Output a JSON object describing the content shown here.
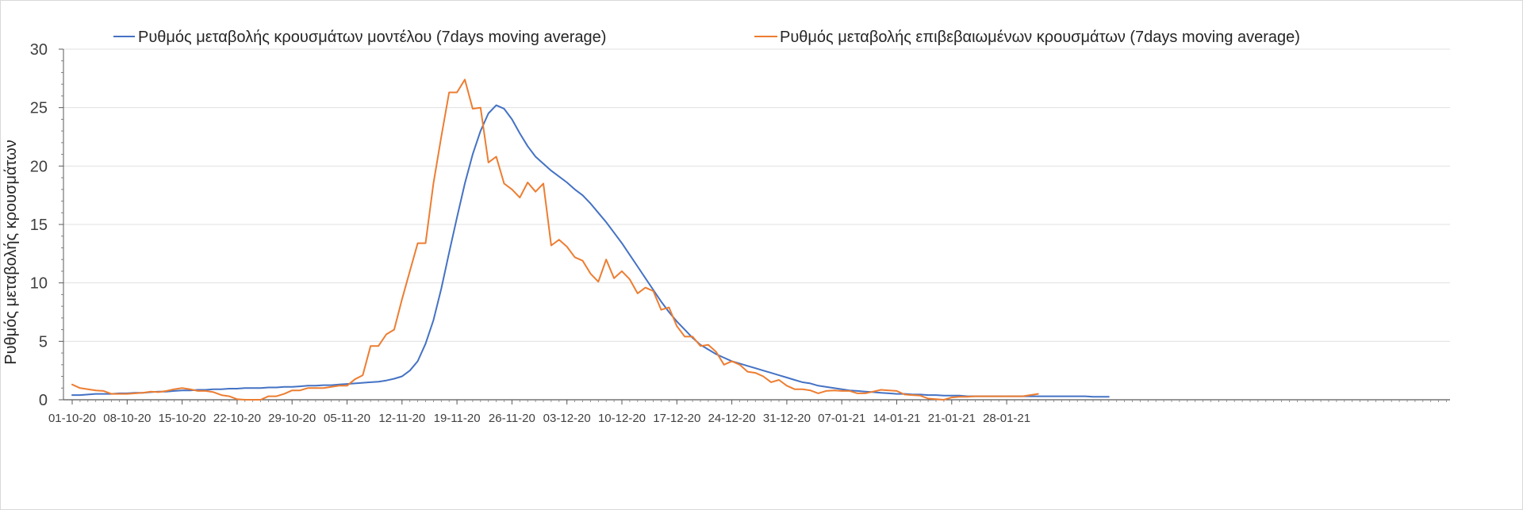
{
  "chart_data": {
    "type": "line",
    "title": "",
    "xlabel": "",
    "ylabel": "Ρυθμός μεταβολής κρουσμάτων",
    "ylim": [
      0,
      30
    ],
    "yticks": [
      0,
      5,
      10,
      15,
      20,
      25,
      30
    ],
    "grid": "horizontal",
    "legend_position": "top",
    "x_start": "01-10-20",
    "x_tick_labels": [
      "01-10-20",
      "08-10-20",
      "15-10-20",
      "22-10-20",
      "29-10-20",
      "05-11-20",
      "12-11-20",
      "19-11-20",
      "26-11-20",
      "03-12-20",
      "10-12-20",
      "17-12-20",
      "24-12-20",
      "31-12-20",
      "07-01-21",
      "14-01-21",
      "21-01-21",
      "28-01-21"
    ],
    "series": [
      {
        "name": "Ρυθμός μεταβολής κρουσμάτων μοντέλου (7days moving average)",
        "color": "#4472C4",
        "values": [
          0.4,
          0.4,
          0.45,
          0.5,
          0.5,
          0.5,
          0.55,
          0.55,
          0.6,
          0.6,
          0.65,
          0.7,
          0.7,
          0.75,
          0.8,
          0.8,
          0.85,
          0.85,
          0.9,
          0.9,
          0.95,
          0.95,
          1.0,
          1.0,
          1.0,
          1.05,
          1.05,
          1.1,
          1.1,
          1.15,
          1.2,
          1.2,
          1.25,
          1.25,
          1.3,
          1.35,
          1.4,
          1.45,
          1.5,
          1.55,
          1.65,
          1.8,
          2.0,
          2.5,
          3.3,
          4.8,
          6.8,
          9.5,
          12.6,
          15.6,
          18.5,
          21.0,
          23.0,
          24.5,
          25.2,
          24.9,
          24.0,
          22.8,
          21.7,
          20.8,
          20.2,
          19.6,
          19.1,
          18.6,
          18.0,
          17.5,
          16.8,
          16.0,
          15.2,
          14.3,
          13.4,
          12.4,
          11.4,
          10.4,
          9.4,
          8.4,
          7.5,
          6.7,
          6.0,
          5.3,
          4.7,
          4.3,
          3.9,
          3.6,
          3.3,
          3.1,
          2.9,
          2.7,
          2.5,
          2.3,
          2.1,
          1.9,
          1.7,
          1.5,
          1.4,
          1.2,
          1.1,
          1.0,
          0.9,
          0.8,
          0.75,
          0.7,
          0.65,
          0.6,
          0.55,
          0.5,
          0.5,
          0.45,
          0.45,
          0.4,
          0.4,
          0.35,
          0.35,
          0.35,
          0.3,
          0.3,
          0.3,
          0.3,
          0.3,
          0.3,
          0.3,
          0.3,
          0.3,
          0.3,
          0.3,
          0.3,
          0.3,
          0.3,
          0.3,
          0.3,
          0.25,
          0.25,
          0.25
        ]
      },
      {
        "name": "Ρυθμός μεταβολής επιβεβαιωμένων κρουσμάτων (7days moving average)",
        "color": "#ED7D31",
        "values": [
          1.3,
          1.0,
          0.9,
          0.8,
          0.75,
          0.5,
          0.5,
          0.5,
          0.55,
          0.6,
          0.7,
          0.65,
          0.75,
          0.9,
          1.0,
          0.9,
          0.75,
          0.75,
          0.65,
          0.4,
          0.3,
          0.05,
          0.0,
          0.0,
          0.0,
          0.3,
          0.3,
          0.5,
          0.8,
          0.8,
          1.0,
          1.0,
          1.0,
          1.1,
          1.2,
          1.2,
          1.75,
          2.1,
          4.6,
          4.6,
          5.6,
          6.0,
          8.6,
          11.0,
          13.4,
          13.4,
          18.5,
          22.5,
          26.3,
          26.3,
          27.4,
          24.9,
          25.0,
          20.3,
          20.8,
          18.5,
          18.0,
          17.3,
          18.6,
          17.8,
          18.5,
          13.2,
          13.7,
          13.1,
          12.2,
          11.9,
          10.8,
          10.1,
          12.0,
          10.4,
          11.0,
          10.3,
          9.1,
          9.6,
          9.3,
          7.7,
          7.9,
          6.3,
          5.4,
          5.4,
          4.6,
          4.7,
          4.1,
          3.0,
          3.3,
          3.0,
          2.4,
          2.3,
          2.0,
          1.5,
          1.7,
          1.2,
          0.9,
          0.9,
          0.8,
          0.55,
          0.75,
          0.8,
          0.75,
          0.75,
          0.55,
          0.55,
          0.7,
          0.85,
          0.8,
          0.75,
          0.45,
          0.4,
          0.35,
          0.1,
          0.05,
          0.0,
          0.2,
          0.25,
          0.25,
          0.3,
          0.3,
          0.3,
          0.3,
          0.3,
          0.3,
          0.3,
          0.4,
          0.5
        ]
      }
    ]
  }
}
